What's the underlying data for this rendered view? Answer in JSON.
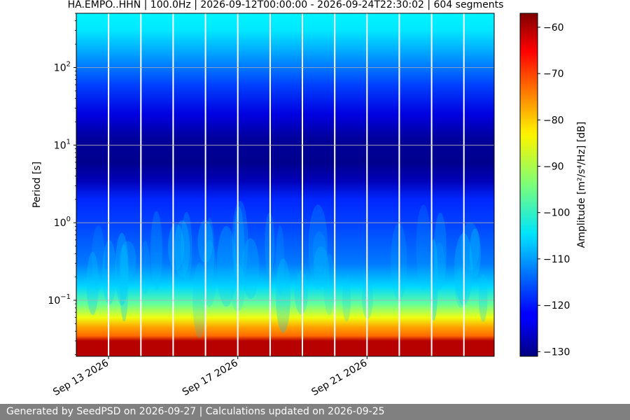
{
  "chart_data": {
    "type": "heatmap",
    "title": "HA.EMPO..HHN | 100.0Hz | 2026-09-12T00:00:00 - 2026-09-24T22:30:02 | 604 segments",
    "ylabel": "Period [s]",
    "y_scale": "log",
    "y_inverted": true,
    "ylim": [
      0.019,
      500
    ],
    "y_ticks": [
      {
        "value": 0.1,
        "base": "10",
        "exp": "−1"
      },
      {
        "value": 1,
        "base": "10",
        "exp": "0"
      },
      {
        "value": 10,
        "base": "10",
        "exp": "1"
      },
      {
        "value": 100,
        "base": "10",
        "exp": "2"
      }
    ],
    "x_range": [
      "2026-09-12T00:00:00",
      "2026-09-24T22:30:02"
    ],
    "x_ticks": [
      {
        "date": "2026-09-13",
        "label": "Sep 13 2026"
      },
      {
        "date": "2026-09-17",
        "label": "Sep 17 2026"
      },
      {
        "date": "2026-09-21",
        "label": "Sep 21 2026"
      }
    ],
    "gap_dates": [
      "2026-09-13",
      "2026-09-14",
      "2026-09-15",
      "2026-09-16",
      "2026-09-17",
      "2026-09-18",
      "2026-09-19",
      "2026-09-20",
      "2026-09-21",
      "2026-09-22",
      "2026-09-23",
      "2026-09-24"
    ],
    "grid": true,
    "colormap": "jet",
    "colorbar": {
      "label": "Amplitude [m²/s⁴/Hz] [dB]",
      "range": [
        -131,
        -57
      ],
      "ticks": [
        -130,
        -120,
        -110,
        -100,
        -90,
        -80,
        -70,
        -60
      ]
    },
    "amplitude_profile": [
      {
        "period": 0.02,
        "db": -61
      },
      {
        "period": 0.03,
        "db": -61
      },
      {
        "period": 0.035,
        "db": -74
      },
      {
        "period": 0.045,
        "db": -78
      },
      {
        "period": 0.06,
        "db": -86
      },
      {
        "period": 0.09,
        "db": -96
      },
      {
        "period": 0.15,
        "db": -106
      },
      {
        "period": 0.3,
        "db": -113
      },
      {
        "period": 1.0,
        "db": -117
      },
      {
        "period": 2.0,
        "db": -119
      },
      {
        "period": 3.5,
        "db": -127
      },
      {
        "period": 6.0,
        "db": -130
      },
      {
        "period": 12.0,
        "db": -129
      },
      {
        "period": 25.0,
        "db": -124
      },
      {
        "period": 60.0,
        "db": -117
      },
      {
        "period": 150.0,
        "db": -110
      },
      {
        "period": 300.0,
        "db": -105
      },
      {
        "period": 500.0,
        "db": -104
      }
    ]
  },
  "footer": {
    "text": "Generated by SeedPSD on 2026-09-27 | Calculations updated on 2026-09-25"
  }
}
